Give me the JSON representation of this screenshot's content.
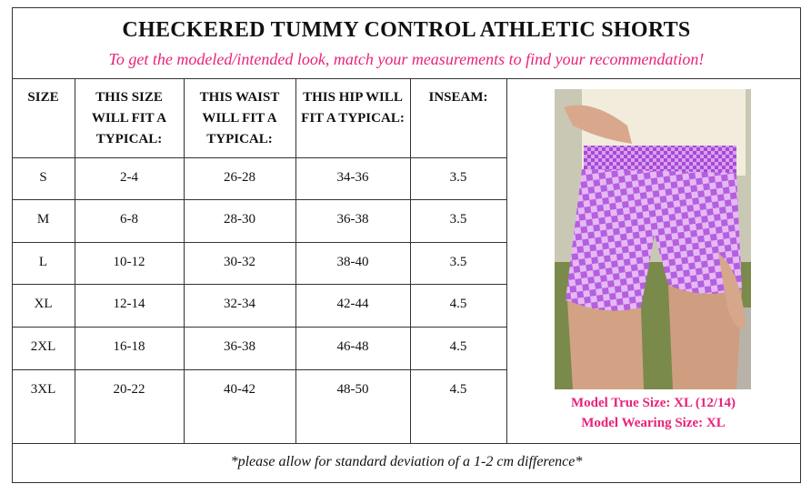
{
  "header": {
    "title": "CHECKERED TUMMY CONTROL ATHLETIC SHORTS",
    "subtitle": "To get the modeled/intended look, match your measurements to find your recommendation!"
  },
  "table": {
    "columns": [
      "SIZE",
      "THIS SIZE WILL FIT A TYPICAL:",
      "THIS WAIST WILL FIT A TYPICAL:",
      "THIS HIP WILL FIT A TYPICAL:",
      "INSEAM:"
    ],
    "rows": [
      [
        "S",
        "2-4",
        "26-28",
        "34-36",
        "3.5"
      ],
      [
        "M",
        "6-8",
        "28-30",
        "36-38",
        "3.5"
      ],
      [
        "L",
        "10-12",
        "30-32",
        "38-40",
        "3.5"
      ],
      [
        "XL",
        "12-14",
        "32-34",
        "42-44",
        "4.5"
      ],
      [
        "2XL",
        "16-18",
        "36-38",
        "46-48",
        "4.5"
      ],
      [
        "3XL",
        "20-22",
        "40-42",
        "48-50",
        "4.5"
      ]
    ]
  },
  "model": {
    "true_size": "Model True Size: XL (12/14)",
    "wearing_size": "Model Wearing Size: XL"
  },
  "footer": {
    "note": "*please allow for standard deviation of a 1-2 cm difference*"
  }
}
